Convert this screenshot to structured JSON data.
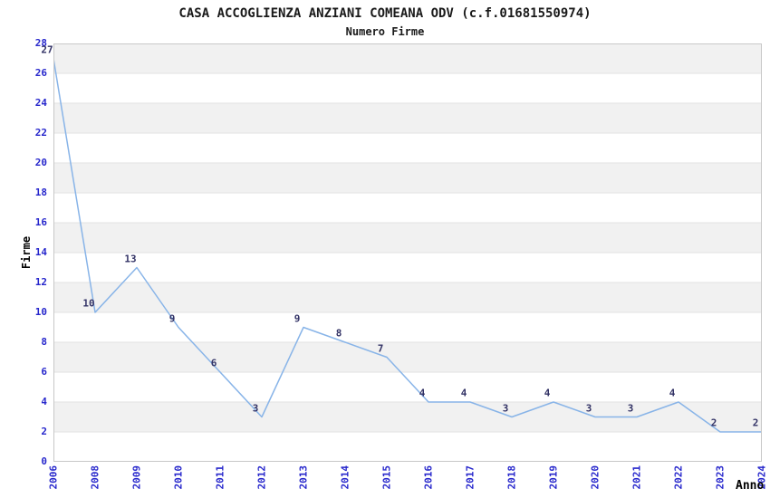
{
  "page": {
    "background": "#ffffff"
  },
  "chart_data": {
    "type": "line",
    "title": "CASA ACCOGLIENZA ANZIANI COMEANA ODV (c.f.01681550974)",
    "subtitle": "Numero Firme",
    "xlabel": "Anno",
    "ylabel": "Firme",
    "categories": [
      "2006",
      "2008",
      "2009",
      "2010",
      "2011",
      "2012",
      "2013",
      "2014",
      "2015",
      "2016",
      "2017",
      "2018",
      "2019",
      "2020",
      "2021",
      "2022",
      "2023",
      "2024"
    ],
    "values": [
      27,
      10,
      13,
      9,
      6,
      3,
      9,
      8,
      7,
      4,
      4,
      3,
      4,
      3,
      3,
      4,
      2,
      2
    ],
    "ylim": [
      0,
      28
    ],
    "ytick_step": 2,
    "data_labels": true,
    "legend": "none",
    "grid": "horizontal-bands-alternating",
    "colors": {
      "line": "#88b4e8",
      "tick_label": "#2727cc",
      "data_label": "#333366",
      "band_fill": "#f1f1f1",
      "gridline": "#e2e2e2",
      "plot_border": "#c8c8c8",
      "title_text": "#1a1a1a"
    }
  }
}
